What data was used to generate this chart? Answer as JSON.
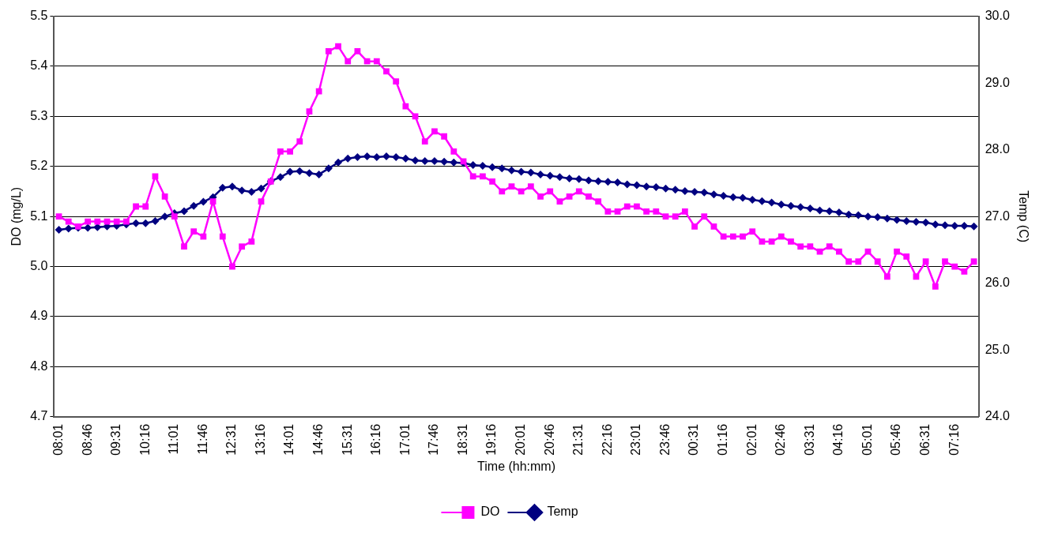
{
  "chart_data": {
    "type": "line",
    "xlabel": "Time (hh:mm)",
    "ylabel": "DO (mg/L)",
    "y2label": "Temp (C)",
    "categories": [
      "08:01",
      null,
      null,
      "08:46",
      null,
      null,
      "09:31",
      null,
      null,
      "10:16",
      null,
      null,
      "11:01",
      null,
      null,
      "11:46",
      null,
      null,
      "12:31",
      null,
      null,
      "13:16",
      null,
      null,
      "14:01",
      null,
      null,
      "14:46",
      null,
      null,
      "15:31",
      null,
      null,
      "16:16",
      null,
      null,
      "17:01",
      null,
      null,
      "17:46",
      null,
      null,
      "18:31",
      null,
      null,
      "19:16",
      null,
      null,
      "20:01",
      null,
      null,
      "20:46",
      null,
      null,
      "21:31",
      null,
      null,
      "22:16",
      null,
      null,
      "23:01",
      null,
      null,
      "23:46",
      null,
      null,
      "00:31",
      null,
      null,
      "01:16",
      null,
      null,
      "02:01",
      null,
      null,
      "02:46",
      null,
      null,
      "03:31",
      null,
      null,
      "04:16",
      null,
      null,
      "05:01",
      null,
      null,
      "05:46",
      null,
      null,
      "06:31",
      null,
      null,
      "07:16",
      null,
      null
    ],
    "series": [
      {
        "name": "DO",
        "color": "#ff00ff",
        "marker": "square",
        "values": [
          5.1,
          5.09,
          5.08,
          5.09,
          5.09,
          5.09,
          5.09,
          5.09,
          5.12,
          5.12,
          5.18,
          5.14,
          5.1,
          5.04,
          5.07,
          5.06,
          5.13,
          5.06,
          5.0,
          5.04,
          5.05,
          5.13,
          5.17,
          5.23,
          5.23,
          5.25,
          5.31,
          5.35,
          5.43,
          5.44,
          5.41,
          5.43,
          5.41,
          5.41,
          5.39,
          5.37,
          5.32,
          5.3,
          5.25,
          5.27,
          5.26,
          5.23,
          5.21,
          5.18,
          5.18,
          5.17,
          5.15,
          5.16,
          5.15,
          5.16,
          5.14,
          5.15,
          5.13,
          5.14,
          5.15,
          5.14,
          5.13,
          5.11,
          5.11,
          5.12,
          5.12,
          5.11,
          5.11,
          5.1,
          5.1,
          5.11,
          5.08,
          5.1,
          5.08,
          5.06,
          5.06,
          5.06,
          5.07,
          5.05,
          5.05,
          5.06,
          5.05,
          5.04,
          5.04,
          5.03,
          5.04,
          5.03,
          5.01,
          5.01,
          5.03,
          5.01,
          4.98,
          5.03,
          5.02,
          4.98,
          5.01,
          4.96,
          5.01,
          5.0,
          4.99,
          5.01
        ]
      },
      {
        "name": "Temp",
        "color": "#000080",
        "marker": "diamond",
        "axis": "y2",
        "values": [
          26.8,
          26.82,
          26.83,
          26.83,
          26.84,
          26.85,
          26.86,
          26.88,
          26.9,
          26.9,
          26.93,
          27.0,
          27.05,
          27.08,
          27.16,
          27.22,
          27.29,
          27.43,
          27.45,
          27.39,
          27.37,
          27.42,
          27.53,
          27.59,
          27.67,
          27.68,
          27.65,
          27.63,
          27.72,
          27.81,
          27.87,
          27.89,
          27.9,
          27.89,
          27.9,
          27.89,
          27.87,
          27.84,
          27.83,
          27.83,
          27.82,
          27.81,
          27.8,
          27.77,
          27.76,
          27.74,
          27.72,
          27.69,
          27.67,
          27.66,
          27.63,
          27.61,
          27.59,
          27.57,
          27.56,
          27.54,
          27.53,
          27.52,
          27.51,
          27.48,
          27.47,
          27.45,
          27.44,
          27.42,
          27.4,
          27.38,
          27.37,
          27.36,
          27.33,
          27.31,
          27.29,
          27.28,
          27.25,
          27.23,
          27.21,
          27.18,
          27.16,
          27.14,
          27.12,
          27.09,
          27.08,
          27.06,
          27.03,
          27.02,
          27.0,
          26.99,
          26.97,
          26.95,
          26.93,
          26.92,
          26.91,
          26.88,
          26.87,
          26.86,
          26.86,
          26.85
        ]
      }
    ],
    "ylim": [
      4.7,
      5.5
    ],
    "yticks": [
      {
        "value": 4.7,
        "label": "4.7"
      },
      {
        "value": 4.8,
        "label": "4.8"
      },
      {
        "value": 4.9,
        "label": "4.9"
      },
      {
        "value": 5.0,
        "label": "5.0"
      },
      {
        "value": 5.1,
        "label": "5.1"
      },
      {
        "value": 5.2,
        "label": "5.2"
      },
      {
        "value": 5.3,
        "label": "5.3"
      },
      {
        "value": 5.4,
        "label": "5.4"
      },
      {
        "value": 5.5,
        "label": "5.5"
      }
    ],
    "y2lim": [
      24,
      30
    ],
    "y2ticks": [
      {
        "value": 24,
        "label": "24.0"
      },
      {
        "value": 25,
        "label": "25.0"
      },
      {
        "value": 26,
        "label": "26.0"
      },
      {
        "value": 27,
        "label": "27.0"
      },
      {
        "value": 28,
        "label": "28.0"
      },
      {
        "value": 29,
        "label": "29.0"
      },
      {
        "value": 30,
        "label": "30.0"
      }
    ],
    "grid": "y",
    "legend": "bottom",
    "line_style": "solid"
  }
}
